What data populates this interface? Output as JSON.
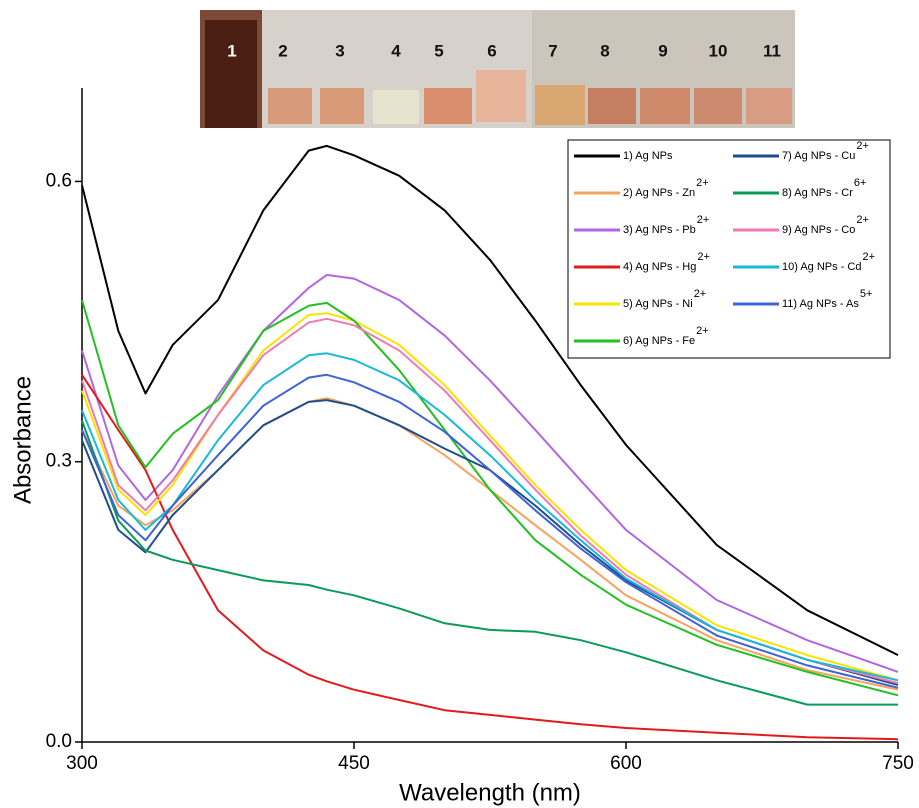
{
  "chart_data": {
    "type": "line",
    "annotations": [
      "1",
      "2",
      "3",
      "4",
      "5",
      "6",
      "7",
      "8",
      "9",
      "10",
      "11"
    ],
    "x_label": "Wavelength (nm)",
    "y_label": "Absorbance",
    "x": [
      300,
      320,
      335,
      350,
      375,
      400,
      425,
      435,
      450,
      475,
      500,
      525,
      550,
      575,
      600,
      650,
      700,
      750
    ],
    "xlim": [
      300,
      750
    ],
    "xticks": [
      300,
      450,
      600,
      750
    ],
    "ylim": [
      0,
      0.7
    ],
    "yticks": [
      {
        "value": 0,
        "label": "0.0"
      },
      0.3,
      0.6
    ],
    "series": [
      {
        "name": "1) Ag NPs",
        "color": "#000000",
        "values": [
          0.596,
          0.44,
          0.373,
          0.425,
          0.473,
          0.569,
          0.633,
          0.638,
          0.628,
          0.606,
          0.569,
          0.516,
          0.451,
          0.382,
          0.318,
          0.211,
          0.141,
          0.093
        ]
      },
      {
        "name": "2) Ag NPs - Zn",
        "charge": "2+",
        "color": "#f4a460",
        "values": [
          0.334,
          0.253,
          0.232,
          0.248,
          0.291,
          0.339,
          0.364,
          0.368,
          0.36,
          0.339,
          0.307,
          0.27,
          0.232,
          0.195,
          0.157,
          0.109,
          0.077,
          0.056
        ]
      },
      {
        "name": "3) Ag NPs - Pb",
        "charge": "2+",
        "color": "#b266e0",
        "values": [
          0.419,
          0.296,
          0.259,
          0.291,
          0.371,
          0.44,
          0.486,
          0.5,
          0.496,
          0.473,
          0.435,
          0.387,
          0.334,
          0.28,
          0.227,
          0.152,
          0.109,
          0.075
        ]
      },
      {
        "name": "4) Ag NPs - Hg",
        "charge": "2+",
        "color": "#e31a1c",
        "values": [
          0.393,
          0.334,
          0.291,
          0.227,
          0.141,
          0.098,
          0.072,
          0.065,
          0.056,
          0.045,
          0.034,
          0.029,
          0.024,
          0.019,
          0.015,
          0.01,
          0.005,
          0.003
        ]
      },
      {
        "name": "5) Ag NPs - Ni",
        "charge": "2+",
        "color": "#f5e400",
        "values": [
          0.376,
          0.27,
          0.243,
          0.275,
          0.35,
          0.419,
          0.457,
          0.459,
          0.451,
          0.425,
          0.382,
          0.328,
          0.275,
          0.227,
          0.184,
          0.125,
          0.093,
          0.066
        ]
      },
      {
        "name": "6) Ag NPs - Fe",
        "charge": "2+",
        "color": "#22c022",
        "values": [
          0.473,
          0.339,
          0.294,
          0.33,
          0.366,
          0.44,
          0.467,
          0.47,
          0.451,
          0.398,
          0.334,
          0.27,
          0.216,
          0.179,
          0.147,
          0.104,
          0.075,
          0.05
        ]
      },
      {
        "name": "7) Ag NPs - Cu",
        "charge": "2+",
        "color": "#1f4e8c",
        "values": [
          0.323,
          0.227,
          0.203,
          0.243,
          0.291,
          0.339,
          0.364,
          0.366,
          0.36,
          0.339,
          0.314,
          0.291,
          0.253,
          0.211,
          0.173,
          0.12,
          0.088,
          0.061
        ]
      },
      {
        "name": "8) Ag NPs - Cr",
        "charge": "6+",
        "color": "#0a9a5a",
        "values": [
          0.344,
          0.237,
          0.205,
          0.195,
          0.184,
          0.173,
          0.168,
          0.163,
          0.157,
          0.143,
          0.127,
          0.12,
          0.118,
          0.109,
          0.096,
          0.066,
          0.04,
          0.04
        ]
      },
      {
        "name": "9) Ag NPs - Co",
        "charge": "2+",
        "color": "#f27ab0",
        "values": [
          0.387,
          0.275,
          0.248,
          0.28,
          0.35,
          0.414,
          0.449,
          0.453,
          0.446,
          0.419,
          0.376,
          0.323,
          0.27,
          0.221,
          0.179,
          0.12,
          0.088,
          0.063
        ]
      },
      {
        "name": "10) Ag NPs - Cd",
        "charge": "2+",
        "color": "#1ab8d8",
        "values": [
          0.355,
          0.259,
          0.227,
          0.253,
          0.323,
          0.382,
          0.414,
          0.416,
          0.409,
          0.387,
          0.35,
          0.307,
          0.259,
          0.216,
          0.175,
          0.12,
          0.088,
          0.066
        ]
      },
      {
        "name": "11) Ag NPs - As",
        "charge": "5+",
        "color": "#3f62d6",
        "values": [
          0.334,
          0.243,
          0.216,
          0.253,
          0.307,
          0.36,
          0.39,
          0.393,
          0.385,
          0.364,
          0.332,
          0.291,
          0.248,
          0.207,
          0.171,
          0.114,
          0.082,
          0.058
        ]
      }
    ]
  }
}
